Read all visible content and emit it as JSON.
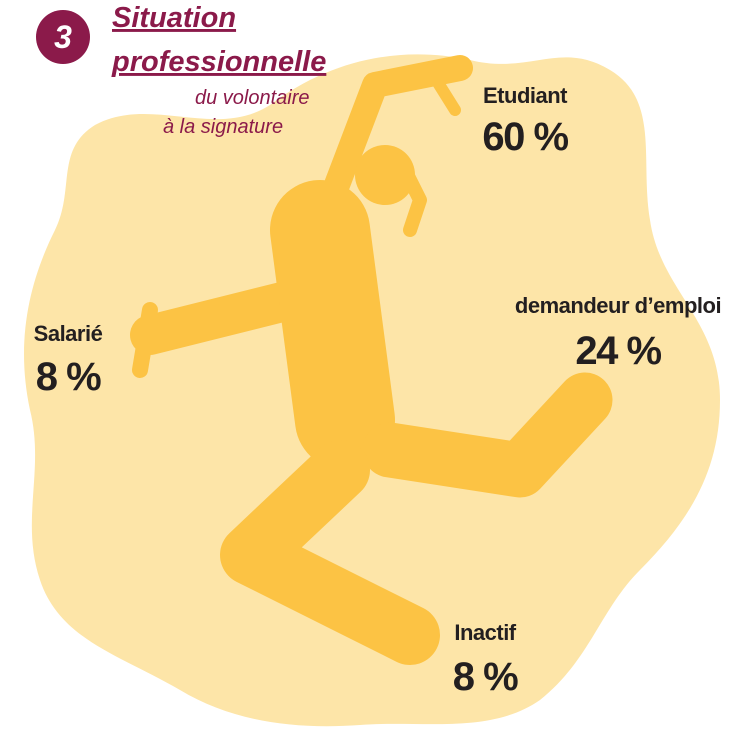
{
  "header": {
    "number": "3",
    "title_line1": "Situation",
    "title_line2": "professionnelle",
    "subtitle_line1": "du volontaire",
    "subtitle_line2": "à la signature"
  },
  "items": [
    {
      "label": "Etudiant",
      "value": "60 %"
    },
    {
      "label": "demandeur d’emploi",
      "value": "24 %"
    },
    {
      "label": "Salarié",
      "value": "8 %"
    },
    {
      "label": "Inactif",
      "value": "8 %"
    }
  ]
}
